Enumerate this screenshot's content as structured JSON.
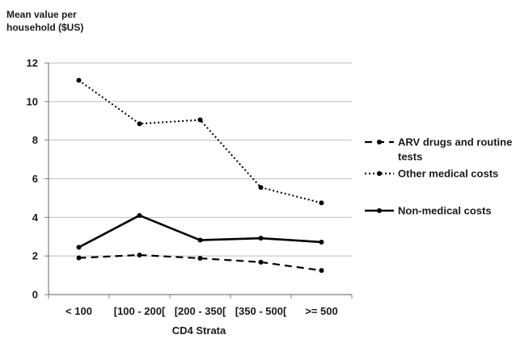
{
  "chart_data": {
    "type": "line",
    "title": "",
    "ylabel_lines": [
      "Mean value per",
      "household ($US)"
    ],
    "xlabel": "CD4 Strata",
    "categories": [
      "< 100",
      "[100 - 200[",
      "[200 - 350[",
      "[350 - 500[",
      ">= 500"
    ],
    "ylim": [
      0,
      12
    ],
    "yticks": [
      0,
      2,
      4,
      6,
      8,
      10,
      12
    ],
    "grid": true,
    "legend_position": "right",
    "colors": {
      "line": "#000000",
      "grid": "#bdbdbd",
      "axis": "#7f7f7f"
    },
    "series": [
      {
        "name_lines": [
          "ARV drugs and routine",
          "tests"
        ],
        "style": "dashed",
        "values": [
          1.9,
          2.05,
          1.88,
          1.68,
          1.25
        ]
      },
      {
        "name_lines": [
          "Other medical costs"
        ],
        "style": "dotted",
        "values": [
          11.1,
          8.85,
          9.05,
          5.55,
          4.75
        ]
      },
      {
        "name_lines": [
          "Non-medical costs"
        ],
        "style": "solid",
        "values": [
          2.45,
          4.1,
          2.82,
          2.92,
          2.72
        ]
      }
    ]
  }
}
